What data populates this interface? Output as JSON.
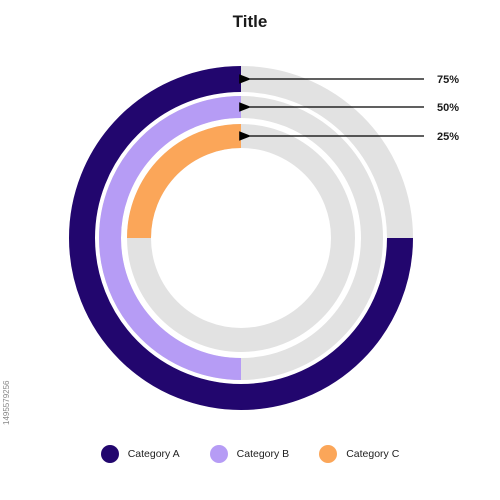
{
  "chart_data": {
    "type": "radial-bar",
    "title": "Title",
    "max": 100,
    "track_color": "#e2e2e2",
    "series": [
      {
        "name": "Category A",
        "value": 75,
        "label": "75%",
        "color": "#22066e"
      },
      {
        "name": "Category B",
        "value": 50,
        "label": "50%",
        "color": "#b69cf5"
      },
      {
        "name": "Category C",
        "value": 25,
        "label": "25%",
        "color": "#fba659"
      }
    ],
    "legend_position": "bottom"
  },
  "watermark": "1495579256"
}
